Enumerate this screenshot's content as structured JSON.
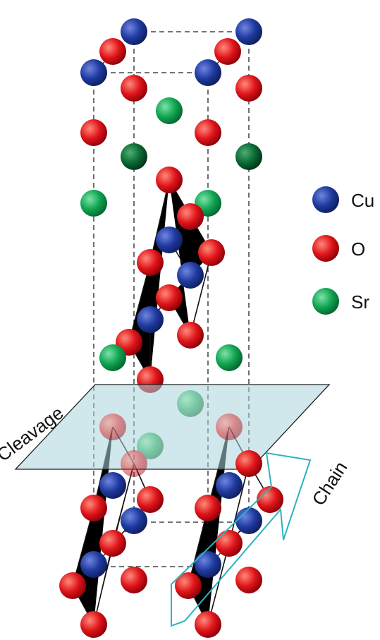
{
  "legend": {
    "items": [
      "Cu",
      "O",
      "Sr"
    ]
  },
  "labels": {
    "cleavage": "Cleavage",
    "chain": "Chain"
  }
}
